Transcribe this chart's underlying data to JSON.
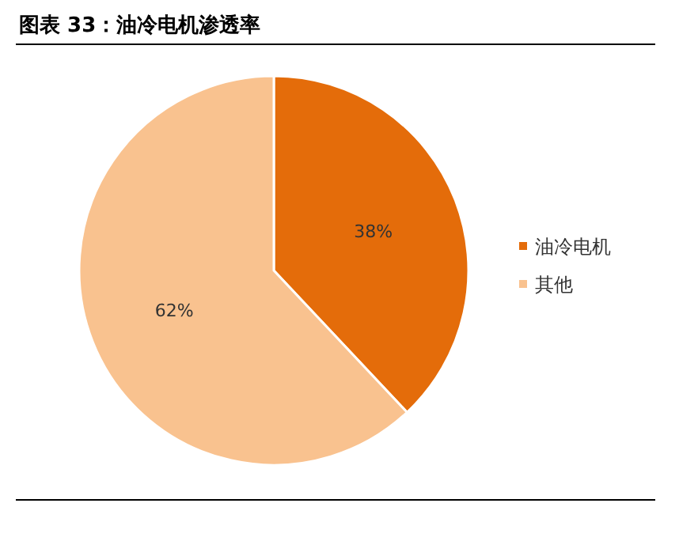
{
  "chart_data": {
    "type": "pie",
    "title": "图表 33：油冷电机渗透率",
    "categories": [
      "油冷电机",
      "其他"
    ],
    "values": [
      38,
      62
    ],
    "colors": [
      "#e46c0a",
      "#f9c28f"
    ],
    "value_labels": [
      "38%",
      "62%"
    ],
    "legend": "right"
  }
}
